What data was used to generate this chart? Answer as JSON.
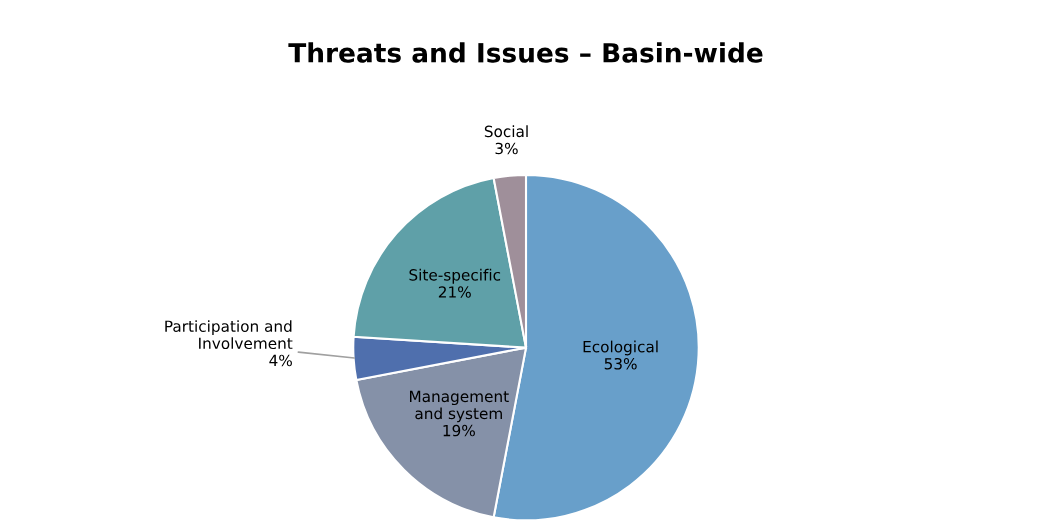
{
  "chart_data": {
    "type": "pie",
    "title": "Threats and Issues – Basin-wide",
    "categories": [
      "Ecological",
      "Management\nand system",
      "Participation and\nInvolvement",
      "Site-specific",
      "Social"
    ],
    "values": [
      53,
      19,
      4,
      21,
      3
    ],
    "colors": [
      "#689fca",
      "#8591a8",
      "#4f6fad",
      "#5fa0a8",
      "#9f8f9a"
    ],
    "value_labels": [
      "53%",
      "19%",
      "4%",
      "21%",
      "3%"
    ],
    "legend": false
  }
}
